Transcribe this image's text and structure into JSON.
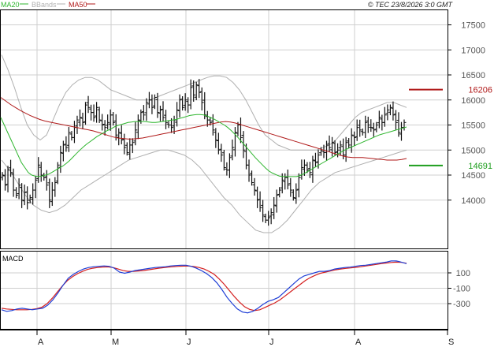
{
  "header": {
    "copyright": "© TEC 23/8/2026 3:0 GMT"
  },
  "legend": [
    {
      "label": "MA20",
      "color": "#2db52d"
    },
    {
      "label": "BBands",
      "color": "#b0b0b0"
    },
    {
      "label": "MA50",
      "color": "#b01a1a"
    }
  ],
  "chart_data": [
    {
      "type": "line",
      "panel": "price",
      "y_ticks": [
        "17500",
        "17000",
        "16500",
        "16000",
        "15500",
        "15000",
        "14500",
        "14000"
      ],
      "x_ticks": [
        "A",
        "M",
        "J",
        "J",
        "A",
        "S"
      ],
      "ylim": [
        13500,
        17700
      ],
      "grid": true,
      "markers": [
        {
          "label": "16206",
          "value": 16206,
          "color": "#b01a1a"
        },
        {
          "label": "14691",
          "value": 14691,
          "color": "#1d9e1d"
        }
      ],
      "ohlc_closes": [
        14500,
        14300,
        14600,
        14550,
        14200,
        14100,
        14300,
        14000,
        14150,
        13950,
        14050,
        14200,
        14400,
        14700,
        14500,
        14450,
        14300,
        14000,
        14200,
        14350,
        14700,
        14950,
        15100,
        15050,
        15350,
        15250,
        15450,
        15600,
        15650,
        15550,
        15900,
        15850,
        15750,
        15650,
        15850,
        15600,
        15500,
        15450,
        15550,
        15700,
        15550,
        15300,
        15350,
        15200,
        15050,
        14950,
        15100,
        15150,
        15400,
        15600,
        15750,
        15700,
        15950,
        16000,
        15850,
        16050,
        15750,
        15800,
        15650,
        15550,
        15500,
        15450,
        15600,
        15800,
        16000,
        15850,
        16000,
        15900,
        16250,
        16100,
        16300,
        16150,
        15950,
        15700,
        15600,
        15550,
        15400,
        15200,
        15000,
        14900,
        14650,
        14600,
        14850,
        15050,
        15350,
        15500,
        15250,
        15000,
        14700,
        14500,
        14350,
        14200,
        14000,
        13850,
        13700,
        13600,
        13650,
        13750,
        13900,
        14100,
        14200,
        14400,
        14450,
        14300,
        14200,
        14050,
        14200,
        14450,
        14650,
        14700,
        14600,
        14550,
        14800,
        14750,
        14900,
        15000,
        14950,
        15100,
        15050,
        15150,
        14950,
        15000,
        15100,
        14900,
        15150,
        15100,
        15300,
        15250,
        15450,
        15400,
        15350,
        15550,
        15500,
        15450,
        15400,
        15500,
        15650,
        15550,
        15700,
        15800,
        15850,
        15700,
        15550,
        15350,
        15450,
        15550
      ],
      "series": [
        {
          "name": "MA20",
          "color": "#2db52d",
          "values": [
            15650,
            15500,
            15350,
            15200,
            15050,
            14900,
            14750,
            14650,
            14550,
            14500,
            14480,
            14470,
            14480,
            14500,
            14520,
            14560,
            14600,
            14640,
            14680,
            14730,
            14790,
            14860,
            14930,
            15000,
            15060,
            15120,
            15170,
            15220,
            15270,
            15310,
            15350,
            15390,
            15420,
            15460,
            15490,
            15510,
            15530,
            15550,
            15560,
            15570,
            15570,
            15570,
            15570,
            15560,
            15550,
            15550,
            15560,
            15570,
            15580,
            15590,
            15600,
            15610,
            15630,
            15650,
            15670,
            15690,
            15700,
            15710,
            15710,
            15700,
            15680,
            15650,
            15620,
            15580,
            15540,
            15500,
            15450,
            15390,
            15320,
            15250,
            15170,
            15090,
            15010,
            14930,
            14850,
            14780,
            14710,
            14640,
            14580,
            14540,
            14510,
            14480,
            14470,
            14470,
            14470,
            14470,
            14470,
            14490,
            14520,
            14560,
            14600,
            14640,
            14680,
            14720,
            14760,
            14800,
            14840,
            14880,
            14920,
            14960,
            15000,
            15030,
            15060,
            15090,
            15120,
            15150,
            15180,
            15210,
            15240,
            15270,
            15300,
            15320,
            15340,
            15360,
            15380,
            15400,
            15420,
            15440,
            15460
          ]
        },
        {
          "name": "MA50",
          "color": "#b01a1a",
          "values": [
            16050,
            15980,
            15910,
            15850,
            15790,
            15740,
            15690,
            15650,
            15610,
            15580,
            15560,
            15540,
            15520,
            15500,
            15480,
            15460,
            15440,
            15420,
            15400,
            15380,
            15350,
            15320,
            15290,
            15260,
            15240,
            15230,
            15220,
            15220,
            15230,
            15240,
            15260,
            15280,
            15300,
            15320,
            15340,
            15360,
            15380,
            15400,
            15420,
            15440,
            15460,
            15480,
            15500,
            15520,
            15540,
            15560,
            15570,
            15560,
            15540,
            15510,
            15480,
            15450,
            15420,
            15390,
            15360,
            15330,
            15300,
            15270,
            15240,
            15210,
            15180,
            15150,
            15120,
            15090,
            15060,
            15030,
            15000,
            14970,
            14940,
            14910,
            14880,
            14860,
            14850,
            14850,
            14850,
            14840,
            14830,
            14820,
            14810,
            14800,
            14800,
            14800,
            14810,
            14830
          ]
        },
        {
          "name": "BBand upper",
          "color": "#b0b0b0",
          "values": [
            16900,
            16600,
            16250,
            15850,
            15500,
            15300,
            15200,
            15300,
            15600,
            15900,
            16150,
            16300,
            16400,
            16450,
            16450,
            16400,
            16300,
            16200,
            16150,
            16100,
            16050,
            16000,
            16000,
            16000,
            16050,
            16100,
            16150,
            16200,
            16250,
            16300,
            16350,
            16400,
            16450,
            16480,
            16480,
            16450,
            16350,
            16200,
            16000,
            15750,
            15500,
            15300,
            15200,
            15100,
            15050,
            15000,
            15000,
            15000,
            15000,
            15000,
            15050,
            15100,
            15200,
            15350,
            15500,
            15650,
            15750,
            15800,
            15850,
            15900,
            15950,
            15950,
            15900,
            15850
          ]
        },
        {
          "name": "BBand lower",
          "color": "#b0b0b0",
          "values": [
            14800,
            14600,
            14350,
            14100,
            13900,
            13800,
            13750,
            13800,
            13900,
            14050,
            14200,
            14300,
            14400,
            14500,
            14600,
            14700,
            14800,
            14850,
            14900,
            14950,
            15000,
            15000,
            14950,
            14900,
            14800,
            14650,
            14450,
            14250,
            14050,
            13900,
            13700,
            13550,
            13400,
            13350,
            13350,
            13450,
            13600,
            13800,
            14000,
            14200,
            14350,
            14450,
            14550,
            14600,
            14650,
            14700,
            14750,
            14800,
            14850,
            14900,
            14950,
            15000
          ]
        }
      ]
    },
    {
      "type": "line",
      "panel": "macd",
      "title": "MACD",
      "y_ticks": [
        "100",
        "-100",
        "-300"
      ],
      "ylim": [
        -450,
        300
      ],
      "grid": true,
      "series": [
        {
          "name": "MACD",
          "color": "#1f3fd6",
          "values": [
            -380,
            -400,
            -390,
            -370,
            -360,
            -370,
            -380,
            -370,
            -360,
            -320,
            -250,
            -160,
            -60,
            30,
            80,
            120,
            150,
            170,
            180,
            185,
            190,
            185,
            160,
            110,
            95,
            110,
            130,
            140,
            150,
            160,
            170,
            175,
            180,
            190,
            195,
            200,
            200,
            185,
            160,
            130,
            90,
            40,
            -30,
            -120,
            -220,
            -300,
            -370,
            -410,
            -420,
            -400,
            -360,
            -310,
            -270,
            -250,
            -220,
            -160,
            -100,
            -40,
            20,
            60,
            80,
            100,
            120,
            120,
            130,
            150,
            160,
            170,
            175,
            185,
            195,
            200,
            210,
            220,
            230,
            240,
            255,
            255,
            240,
            220
          ]
        },
        {
          "name": "Signal",
          "color": "#d42020",
          "values": [
            -360,
            -370,
            -375,
            -380,
            -380,
            -380,
            -375,
            -365,
            -345,
            -300,
            -230,
            -150,
            -70,
            0,
            50,
            90,
            120,
            145,
            160,
            170,
            175,
            178,
            170,
            150,
            130,
            120,
            120,
            125,
            130,
            140,
            150,
            160,
            168,
            175,
            180,
            185,
            188,
            188,
            182,
            170,
            150,
            120,
            80,
            20,
            -50,
            -130,
            -210,
            -280,
            -340,
            -375,
            -390,
            -380,
            -350,
            -320,
            -290,
            -250,
            -200,
            -150,
            -100,
            -50,
            0,
            40,
            70,
            95,
            110,
            125,
            140,
            150,
            158,
            165,
            172,
            180,
            190,
            200,
            210,
            220,
            228,
            235,
            240,
            236,
            225
          ]
        }
      ]
    }
  ]
}
